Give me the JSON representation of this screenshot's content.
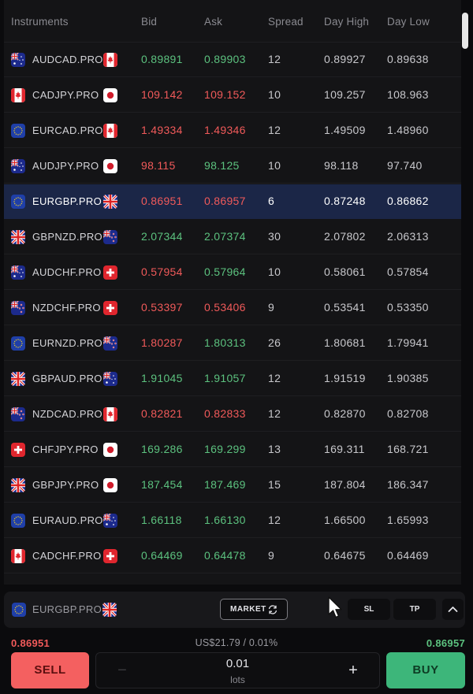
{
  "table": {
    "headers": {
      "instruments": "Instruments",
      "bid": "Bid",
      "ask": "Ask",
      "spread": "Spread",
      "day_high": "Day High",
      "day_low": "Day Low"
    },
    "rows": [
      {
        "symbol": "AUDCAD.PRO",
        "flags": [
          "AU",
          "CA"
        ],
        "bid": "0.89891",
        "ask": "0.89903",
        "spread": "12",
        "day_high": "0.89927",
        "day_low": "0.89638",
        "direction": "up"
      },
      {
        "symbol": "CADJPY.PRO",
        "flags": [
          "CA",
          "JP"
        ],
        "bid": "109.142",
        "ask": "109.152",
        "spread": "10",
        "day_high": "109.257",
        "day_low": "108.963",
        "direction": "down"
      },
      {
        "symbol": "EURCAD.PRO",
        "flags": [
          "EU",
          "CA"
        ],
        "bid": "1.49334",
        "ask": "1.49346",
        "spread": "12",
        "day_high": "1.49509",
        "day_low": "1.48960",
        "direction": "down"
      },
      {
        "symbol": "AUDJPY.PRO",
        "flags": [
          "AU",
          "JP"
        ],
        "bid": "98.115",
        "ask": "98.125",
        "spread": "10",
        "day_high": "98.118",
        "day_low": "97.740",
        "direction": "mixed"
      },
      {
        "symbol": "EURGBP.PRO",
        "flags": [
          "EU",
          "GB"
        ],
        "bid": "0.86951",
        "ask": "0.86957",
        "spread": "6",
        "day_high": "0.87248",
        "day_low": "0.86862",
        "direction": "down",
        "selected": true
      },
      {
        "symbol": "GBPNZD.PRO",
        "flags": [
          "GB",
          "NZ"
        ],
        "bid": "2.07344",
        "ask": "2.07374",
        "spread": "30",
        "day_high": "2.07802",
        "day_low": "2.06313",
        "direction": "up"
      },
      {
        "symbol": "AUDCHF.PRO",
        "flags": [
          "AU",
          "CH"
        ],
        "bid": "0.57954",
        "ask": "0.57964",
        "spread": "10",
        "day_high": "0.58061",
        "day_low": "0.57854",
        "direction": "mixed"
      },
      {
        "symbol": "NZDCHF.PRO",
        "flags": [
          "NZ",
          "CH"
        ],
        "bid": "0.53397",
        "ask": "0.53406",
        "spread": "9",
        "day_high": "0.53541",
        "day_low": "0.53350",
        "direction": "down"
      },
      {
        "symbol": "EURNZD.PRO",
        "flags": [
          "EU",
          "NZ"
        ],
        "bid": "1.80287",
        "ask": "1.80313",
        "spread": "26",
        "day_high": "1.80681",
        "day_low": "1.79941",
        "direction": "mixed"
      },
      {
        "symbol": "GBPAUD.PRO",
        "flags": [
          "GB",
          "AU"
        ],
        "bid": "1.91045",
        "ask": "1.91057",
        "spread": "12",
        "day_high": "1.91519",
        "day_low": "1.90385",
        "direction": "up"
      },
      {
        "symbol": "NZDCAD.PRO",
        "flags": [
          "NZ",
          "CA"
        ],
        "bid": "0.82821",
        "ask": "0.82833",
        "spread": "12",
        "day_high": "0.82870",
        "day_low": "0.82708",
        "direction": "down"
      },
      {
        "symbol": "CHFJPY.PRO",
        "flags": [
          "CH",
          "JP"
        ],
        "bid": "169.286",
        "ask": "169.299",
        "spread": "13",
        "day_high": "169.311",
        "day_low": "168.721",
        "direction": "up"
      },
      {
        "symbol": "GBPJPY.PRO",
        "flags": [
          "GB",
          "JP"
        ],
        "bid": "187.454",
        "ask": "187.469",
        "spread": "15",
        "day_high": "187.804",
        "day_low": "186.347",
        "direction": "up"
      },
      {
        "symbol": "EURAUD.PRO",
        "flags": [
          "EU",
          "AU"
        ],
        "bid": "1.66118",
        "ask": "1.66130",
        "spread": "12",
        "day_high": "1.66500",
        "day_low": "1.65993",
        "direction": "up"
      },
      {
        "symbol": "CADCHF.PRO",
        "flags": [
          "CA",
          "CH"
        ],
        "bid": "0.64469",
        "ask": "0.64478",
        "spread": "9",
        "day_high": "0.64675",
        "day_low": "0.64469",
        "direction": "up"
      }
    ]
  },
  "trade_panel": {
    "symbol": "EURGBP.PRO",
    "flags": [
      "EU",
      "GB"
    ],
    "order_type": "MARKET",
    "sl_label": "SL",
    "tp_label": "TP",
    "bid": "0.86951",
    "ask": "0.86957",
    "pip_info": "US$21.79 / 0.01%",
    "sell_label": "SELL",
    "buy_label": "BUY",
    "lots_value": "0.01",
    "lots_label": "lots",
    "minus_symbol": "−",
    "plus_symbol": "+"
  },
  "colors": {
    "up": "#5cc27f",
    "down": "#f15a5a",
    "selected_row": "#1b2647",
    "sell": "#f46060",
    "buy": "#3db67a"
  },
  "icons": [
    "flag-au-icon",
    "flag-ca-icon",
    "flag-jp-icon",
    "flag-eu-icon",
    "flag-gb-icon",
    "flag-nz-icon",
    "flag-ch-icon",
    "refresh-icon",
    "chevron-up-icon",
    "mouse-cursor-icon"
  ]
}
